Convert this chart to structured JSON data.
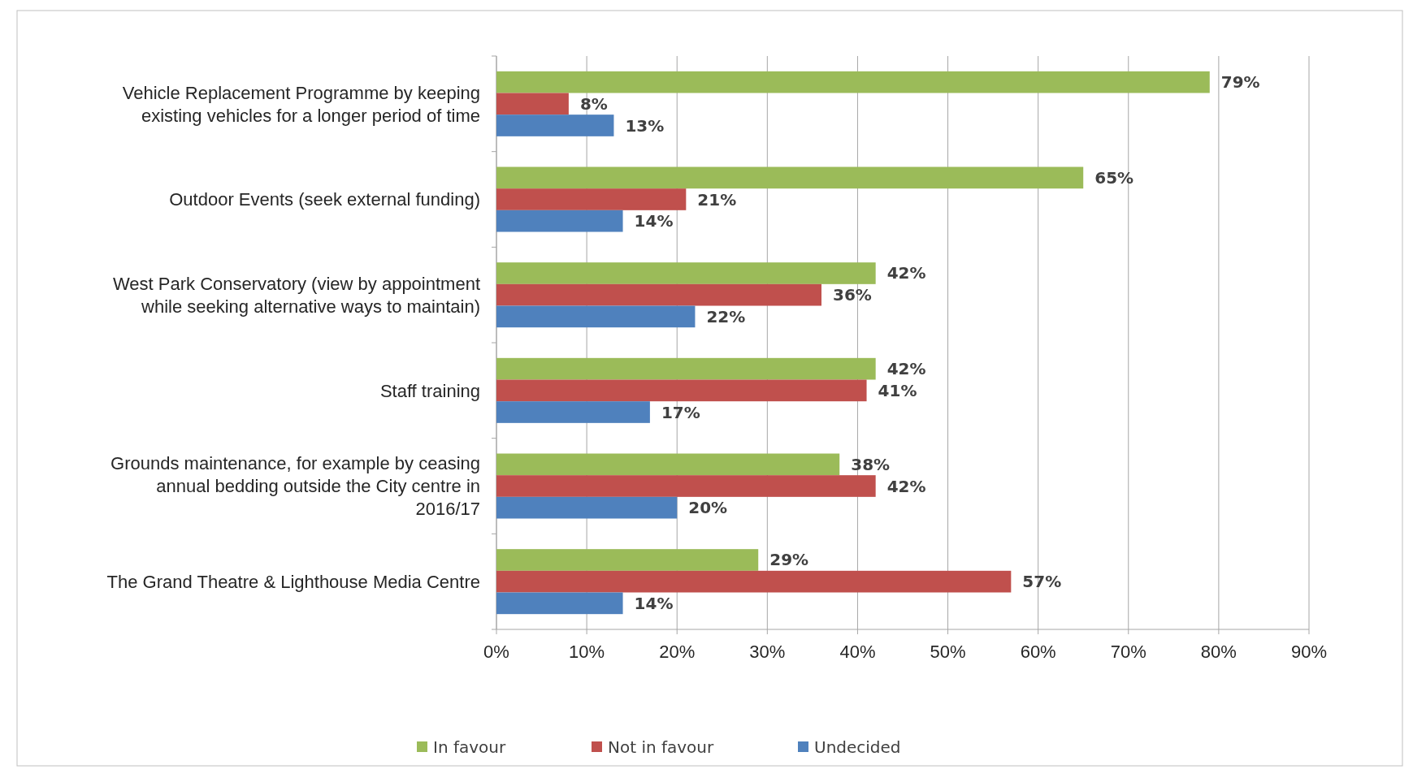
{
  "chart_data": {
    "type": "bar",
    "orientation": "horizontal",
    "categories": [
      "Vehicle Replacement Programme by keeping existing vehicles  for a longer period of time",
      "Outdoor Events (seek external funding)",
      "West Park Conservatory (view by appointment while seeking alternative ways to maintain)",
      "Staff training",
      "Grounds maintenance, for example by ceasing annual bedding outside the City centre in 2016/17",
      "The Grand Theatre & Lighthouse Media Centre"
    ],
    "series": [
      {
        "name": "In favour",
        "color": "#9bbb59",
        "values": [
          79,
          65,
          42,
          42,
          38,
          29
        ]
      },
      {
        "name": "Not in favour",
        "color": "#c0504d",
        "values": [
          8,
          21,
          36,
          41,
          42,
          57
        ]
      },
      {
        "name": "Undecided",
        "color": "#4f81bd",
        "values": [
          13,
          14,
          22,
          17,
          20,
          14
        ]
      }
    ],
    "xlim": [
      0,
      90
    ],
    "xticks": [
      {
        "value": 0,
        "label": "0%"
      },
      {
        "value": 10,
        "label": "10%"
      },
      {
        "value": 20,
        "label": "20%"
      },
      {
        "value": 30,
        "label": "30%"
      },
      {
        "value": 40,
        "label": "40%"
      },
      {
        "value": 50,
        "label": "50%"
      },
      {
        "value": 60,
        "label": "60%"
      },
      {
        "value": 70,
        "label": "70%"
      },
      {
        "value": 80,
        "label": "80%"
      },
      {
        "value": 90,
        "label": "90%"
      }
    ],
    "value_labels": [
      [
        "79%",
        "65%",
        "42%",
        "42%",
        "38%",
        "29%"
      ],
      [
        "8%",
        "21%",
        "36%",
        "41%",
        "42%",
        "57%"
      ],
      [
        "13%",
        "14%",
        "22%",
        "17%",
        "20%",
        "14%"
      ]
    ],
    "grid": "x",
    "legend": "bottom"
  }
}
